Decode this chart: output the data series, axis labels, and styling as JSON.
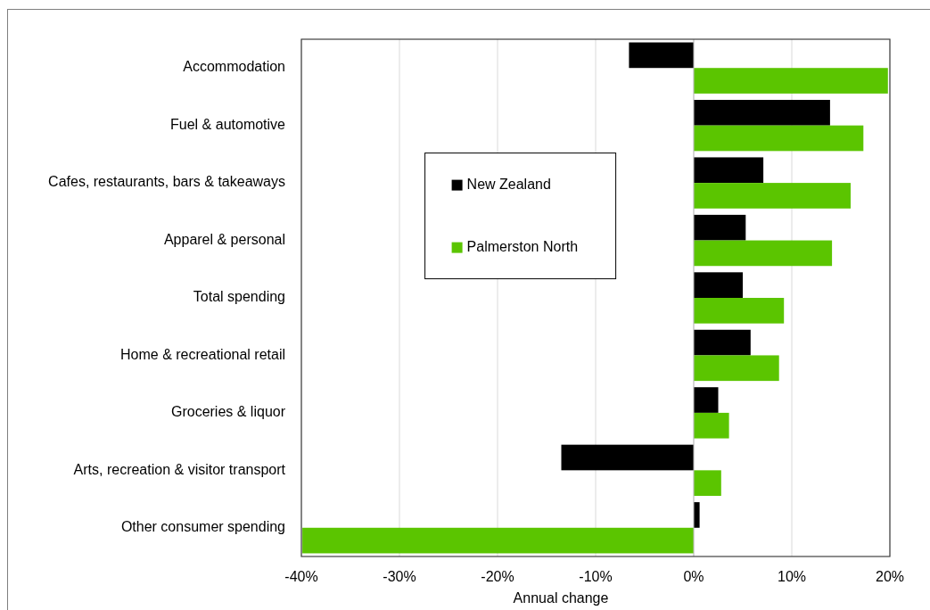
{
  "chart_data": {
    "type": "bar",
    "orientation": "horizontal",
    "categories": [
      "Accommodation",
      "Fuel & automotive",
      "Cafes, restaurants, bars & takeaways",
      "Apparel & personal",
      "Total spending",
      "Home & recreational retail",
      "Groceries & liquor",
      "Arts, recreation & visitor transport",
      "Other consumer spending"
    ],
    "series": [
      {
        "name": "New Zealand",
        "color": "#000000",
        "values": [
          -6.6,
          13.9,
          7.1,
          5.3,
          5.0,
          5.8,
          2.5,
          -13.5,
          0.6
        ]
      },
      {
        "name": "Palmerston North",
        "color": "#5bc500",
        "values": [
          19.8,
          17.3,
          16.0,
          14.1,
          9.2,
          8.7,
          3.6,
          2.8,
          -39.9
        ]
      }
    ],
    "xlim": [
      -40,
      20
    ],
    "xticks": [
      {
        "value": -40,
        "label": "-40%"
      },
      {
        "value": -30,
        "label": "-30%"
      },
      {
        "value": -20,
        "label": "-20%"
      },
      {
        "value": -10,
        "label": "-10%"
      },
      {
        "value": 0,
        "label": "0%"
      },
      {
        "value": 10,
        "label": "10%"
      },
      {
        "value": 20,
        "label": "20%"
      }
    ],
    "xlabel": "Annual change",
    "grid": "x",
    "legend": "left"
  }
}
